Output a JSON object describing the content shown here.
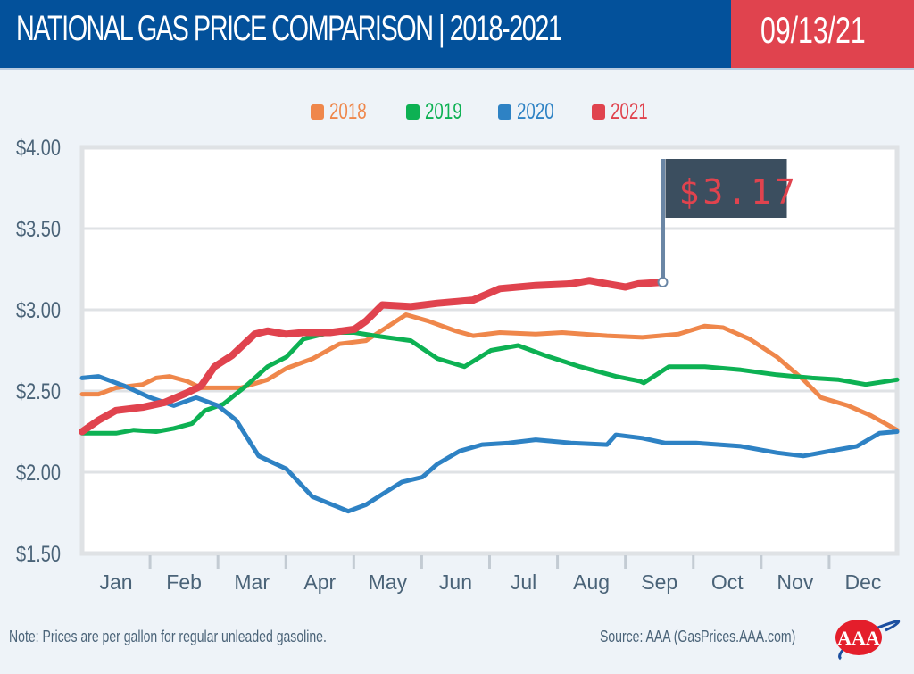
{
  "header": {
    "title": "NATIONAL GAS PRICE COMPARISON | 2018-2021",
    "date": "09/13/21"
  },
  "colors": {
    "header_bg": "#03519b",
    "date_bg": "#e0434e",
    "background": "#eef3f8",
    "plot_bg": "#ffffff",
    "grid": "#dfe2e5",
    "text": "#4a6378",
    "flag_bg": "#3b4e5f",
    "flag_pole": "#6a86a5"
  },
  "legend": [
    {
      "label": "2018",
      "color": "#ef874b"
    },
    {
      "label": "2019",
      "color": "#0db153"
    },
    {
      "label": "2020",
      "color": "#2e82c4"
    },
    {
      "label": "2021",
      "color": "#e0434e"
    }
  ],
  "callout": {
    "label": "$3.17",
    "series": "2021",
    "month": 8.55,
    "value": 3.17
  },
  "footer": {
    "note": "Note: Prices are per gallon for regular unleaded gasoline.",
    "source": "Source: AAA (GasPrices.AAA.com)",
    "logo": "AAA"
  },
  "chart_data": {
    "type": "line",
    "title": "NATIONAL GAS PRICE COMPARISON | 2018-2021",
    "xlabel": "",
    "ylabel": "",
    "x_unit": "months since Jan 1",
    "xlim": [
      0,
      12
    ],
    "ylim": [
      1.5,
      4.0
    ],
    "yticks": [
      1.5,
      2.0,
      2.5,
      3.0,
      3.5,
      4.0
    ],
    "ytick_labels": [
      "$1.50",
      "$2.00",
      "$2.50",
      "$3.00",
      "$3.50",
      "$4.00"
    ],
    "categories": [
      "Jan",
      "Feb",
      "Mar",
      "Apr",
      "May",
      "Jun",
      "Jul",
      "Aug",
      "Sep",
      "Oct",
      "Nov",
      "Dec"
    ],
    "grid": true,
    "legend_position": "top-center",
    "series": [
      {
        "name": "2018",
        "color": "#ef874b",
        "x": [
          0,
          0.24,
          0.5,
          0.89,
          1.09,
          1.29,
          1.55,
          1.75,
          2.0,
          2.34,
          2.73,
          3.01,
          3.4,
          3.79,
          4.18,
          4.44,
          4.77,
          5.1,
          5.5,
          5.76,
          6.15,
          6.68,
          7.07,
          7.73,
          8.25,
          8.78,
          9.17,
          9.44,
          9.83,
          10.23,
          10.62,
          10.88,
          11.28,
          11.61,
          12.0
        ],
        "y": [
          2.48,
          2.48,
          2.52,
          2.54,
          2.58,
          2.59,
          2.56,
          2.52,
          2.52,
          2.52,
          2.57,
          2.64,
          2.7,
          2.79,
          2.81,
          2.88,
          2.97,
          2.93,
          2.87,
          2.84,
          2.86,
          2.85,
          2.86,
          2.84,
          2.83,
          2.85,
          2.9,
          2.89,
          2.82,
          2.71,
          2.57,
          2.46,
          2.41,
          2.35,
          2.26
        ]
      },
      {
        "name": "2019",
        "color": "#0db153",
        "x": [
          0,
          0.5,
          0.76,
          1.09,
          1.35,
          1.62,
          1.81,
          2.08,
          2.41,
          2.73,
          3.01,
          3.26,
          3.65,
          4.01,
          4.31,
          4.84,
          5.23,
          5.63,
          6.02,
          6.42,
          6.81,
          7.33,
          7.86,
          8.22,
          8.27,
          8.64,
          9.17,
          9.7,
          10.23,
          10.75,
          11.14,
          11.54,
          12.0
        ],
        "y": [
          2.24,
          2.24,
          2.26,
          2.25,
          2.27,
          2.3,
          2.38,
          2.42,
          2.53,
          2.65,
          2.71,
          2.82,
          2.86,
          2.86,
          2.84,
          2.81,
          2.7,
          2.65,
          2.75,
          2.78,
          2.72,
          2.65,
          2.59,
          2.56,
          2.55,
          2.65,
          2.65,
          2.63,
          2.6,
          2.58,
          2.57,
          2.54,
          2.57
        ]
      },
      {
        "name": "2020",
        "color": "#2e82c4",
        "x": [
          0,
          0.24,
          0.63,
          1.0,
          1.35,
          1.68,
          2.0,
          2.27,
          2.6,
          3.01,
          3.39,
          3.92,
          4.18,
          4.44,
          4.71,
          5.01,
          5.23,
          5.56,
          5.89,
          6.28,
          6.68,
          7.2,
          7.73,
          7.86,
          8.25,
          8.58,
          9.04,
          9.7,
          10.23,
          10.62,
          11.01,
          11.41,
          11.74,
          12.0
        ],
        "y": [
          2.58,
          2.59,
          2.53,
          2.46,
          2.41,
          2.46,
          2.41,
          2.32,
          2.1,
          2.02,
          1.85,
          1.76,
          1.8,
          1.87,
          1.94,
          1.97,
          2.05,
          2.13,
          2.17,
          2.18,
          2.2,
          2.18,
          2.17,
          2.23,
          2.21,
          2.18,
          2.18,
          2.16,
          2.12,
          2.1,
          2.13,
          2.16,
          2.24,
          2.25
        ]
      },
      {
        "name": "2021",
        "color": "#e0434e",
        "x": [
          0,
          0.24,
          0.5,
          0.89,
          1.22,
          1.55,
          1.75,
          1.95,
          2.21,
          2.54,
          2.73,
          3.0,
          3.26,
          3.65,
          4.01,
          4.18,
          4.42,
          4.84,
          5.23,
          5.76,
          6.15,
          6.68,
          7.2,
          7.47,
          7.73,
          8.0,
          8.19,
          8.55
        ],
        "y": [
          2.25,
          2.32,
          2.38,
          2.4,
          2.43,
          2.49,
          2.53,
          2.65,
          2.72,
          2.85,
          2.87,
          2.85,
          2.86,
          2.86,
          2.88,
          2.93,
          3.03,
          3.02,
          3.04,
          3.06,
          3.13,
          3.15,
          3.16,
          3.18,
          3.16,
          3.14,
          3.16,
          3.17
        ]
      }
    ]
  }
}
